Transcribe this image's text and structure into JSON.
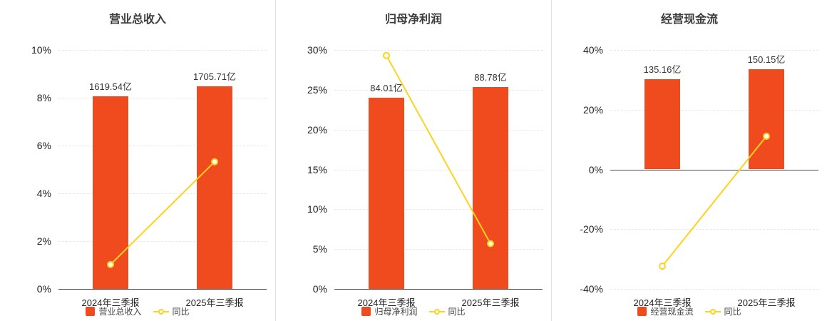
{
  "colors": {
    "bar": "#f04a1f",
    "line": "#ffd21e",
    "axis": "#4a4a4a",
    "grid": "#e8e8e8",
    "text": "#333333",
    "background": "#ffffff"
  },
  "chart_data": [
    {
      "type": "bar+line",
      "title": "营业总收入",
      "categories": [
        "2024年三季报",
        "2025年三季报"
      ],
      "bar": {
        "name": "营业总收入",
        "labels": [
          "1619.54亿",
          "1705.71亿"
        ],
        "pct": [
          8.05,
          8.48
        ]
      },
      "line": {
        "name": "同比",
        "pct": [
          1.02,
          5.32
        ]
      },
      "ylim": [
        0,
        10
      ],
      "yticks": [
        {
          "v": 0,
          "label": "0%"
        },
        {
          "v": 2,
          "label": "2%"
        },
        {
          "v": 4,
          "label": "4%"
        },
        {
          "v": 6,
          "label": "6%"
        },
        {
          "v": 8,
          "label": "8%"
        },
        {
          "v": 10,
          "label": "10%"
        }
      ],
      "legend_position": "bottom",
      "grid": true
    },
    {
      "type": "bar+line",
      "title": "归母净利润",
      "categories": [
        "2024年三季报",
        "2025年三季报"
      ],
      "bar": {
        "name": "归母净利润",
        "labels": [
          "84.01亿",
          "88.78亿"
        ],
        "pct": [
          24.0,
          25.35
        ]
      },
      "line": {
        "name": "同比",
        "pct": [
          29.3,
          5.68
        ]
      },
      "ylim": [
        0,
        30
      ],
      "yticks": [
        {
          "v": 0,
          "label": "0%"
        },
        {
          "v": 5,
          "label": "5%"
        },
        {
          "v": 10,
          "label": "10%"
        },
        {
          "v": 15,
          "label": "15%"
        },
        {
          "v": 20,
          "label": "20%"
        },
        {
          "v": 25,
          "label": "25%"
        },
        {
          "v": 30,
          "label": "30%"
        }
      ],
      "legend_position": "bottom",
      "grid": true
    },
    {
      "type": "bar+line",
      "title": "经营现金流",
      "categories": [
        "2024年三季报",
        "2025年三季报"
      ],
      "bar": {
        "name": "经营现金流",
        "labels": [
          "135.16亿",
          "150.15亿"
        ],
        "pct": [
          30.2,
          33.6
        ]
      },
      "line": {
        "name": "同比",
        "pct": [
          -32.4,
          11.09
        ]
      },
      "ylim": [
        -40,
        40
      ],
      "yticks": [
        {
          "v": -40,
          "label": "-40%"
        },
        {
          "v": -20,
          "label": "-20%"
        },
        {
          "v": 0,
          "label": "0%"
        },
        {
          "v": 20,
          "label": "20%"
        },
        {
          "v": 40,
          "label": "40%"
        }
      ],
      "legend_position": "bottom",
      "grid": true
    }
  ]
}
